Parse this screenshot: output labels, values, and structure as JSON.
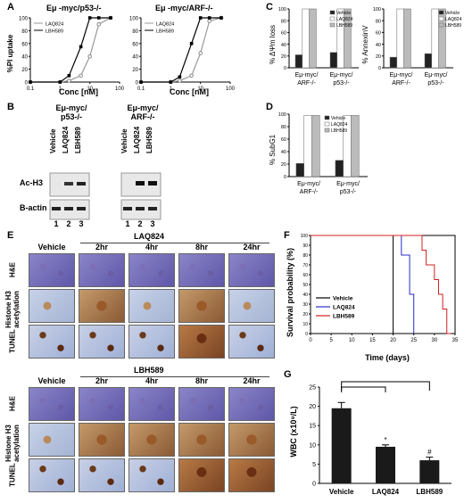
{
  "panel_labels": {
    "a": "A",
    "b": "B",
    "c": "C",
    "d": "D",
    "e": "E",
    "f": "F",
    "g": "G"
  },
  "panelA": {
    "left_title": "Eμ -myc/p53-/-",
    "right_title": "Eμ -myc/ARF-/-",
    "ylabel": "%PI uptake",
    "xlabel": "Conc [nM]",
    "yticks": [
      "0",
      "20",
      "40",
      "60",
      "80",
      "100"
    ],
    "xticks": [
      "0.1",
      "1",
      "10",
      "100"
    ],
    "legend": [
      "LAQ824",
      "LBH589"
    ]
  },
  "panelB": {
    "col1_title": "Eμ-myc/ p53-/-",
    "col2_title": "Eμ-myc/ ARF-/-",
    "lanes": [
      "Vehicle",
      "LAQ824",
      "LBH589"
    ],
    "row_labels": [
      "Ac-H3",
      "B-actin"
    ],
    "lane_numbers": [
      "1",
      "2",
      "3"
    ]
  },
  "panelC": {
    "ylabel_left": "% ΔΨm loss",
    "ylabel_right": "% AnnexinV",
    "yticks": [
      "0",
      "20",
      "40",
      "60",
      "80",
      "100"
    ],
    "groups": [
      "Eμ-myc/ ARF-/-",
      "Eμ-myc/ p53-/-"
    ],
    "legend": [
      "Vehicle",
      "LAQ824",
      "LBH589"
    ]
  },
  "panelD": {
    "ylabel": "% SubG1",
    "yticks": [
      "0",
      "20",
      "40",
      "60",
      "80",
      "100"
    ],
    "groups": [
      "Eμ-myc/ ARF-/-",
      "Eμ-myc/ p53-/-"
    ],
    "legend": [
      "Vehicle",
      "LAQ824",
      "LBH589"
    ]
  },
  "panelE": {
    "top_drug": "LAQ824",
    "bottom_drug": "LBH589",
    "timepoints": [
      "Vehicle",
      "2hr",
      "4hr",
      "8hr",
      "24hr"
    ],
    "row_labels": [
      "H&E",
      "Histone H3 acetylation",
      "TUNEL"
    ]
  },
  "panelF": {
    "ylabel": "Survival probability (%)",
    "xlabel": "Time (days)",
    "yticks": [
      "0",
      "10",
      "20",
      "30",
      "40",
      "50",
      "60",
      "70",
      "80",
      "90",
      "100"
    ],
    "xticks": [
      "0",
      "5",
      "10",
      "15",
      "20",
      "25",
      "30",
      "35"
    ],
    "legend": [
      "Vehicle",
      "LAQ824",
      "LBH589"
    ],
    "colors": {
      "vehicle": "#000000",
      "laq824": "#2b2bcc",
      "lbh589": "#d42020"
    }
  },
  "panelG": {
    "ylabel": "WBC (x10⁹/L)",
    "yticks": [
      "0",
      "5",
      "10",
      "15",
      "20",
      "25"
    ],
    "categories": [
      "Vehicle",
      "LAQ824",
      "LBH589"
    ],
    "annotations": [
      "*",
      "#"
    ]
  },
  "chart_data": [
    {
      "type": "line",
      "title": "Eμ -myc/p53-/-",
      "xlabel": "Conc [nM]",
      "ylabel": "%PI uptake",
      "xscale": "log",
      "xlim": [
        0.1,
        100
      ],
      "ylim": [
        0,
        100
      ],
      "x": [
        0.1,
        1,
        2,
        5,
        10,
        20,
        50
      ],
      "series": [
        {
          "name": "LAQ824",
          "values": [
            0,
            0,
            2,
            10,
            40,
            90,
            100
          ]
        },
        {
          "name": "LBH589",
          "values": [
            0,
            0,
            10,
            55,
            100,
            100,
            100
          ]
        }
      ]
    },
    {
      "type": "line",
      "title": "Eμ -myc/ARF-/-",
      "xlabel": "Conc [nM]",
      "ylabel": "%PI uptake",
      "xscale": "log",
      "xlim": [
        0.1,
        100
      ],
      "ylim": [
        0,
        100
      ],
      "x": [
        0.1,
        1,
        2,
        5,
        10,
        20,
        50
      ],
      "series": [
        {
          "name": "LAQ824",
          "values": [
            0,
            0,
            2,
            10,
            45,
            95,
            100
          ]
        },
        {
          "name": "LBH589",
          "values": [
            0,
            0,
            8,
            60,
            100,
            100,
            100
          ]
        }
      ]
    },
    {
      "type": "bar",
      "ylabel": "% ΔΨm loss",
      "categories": [
        "Eμ-myc/ ARF-/-",
        "Eμ-myc/ p53-/-"
      ],
      "ylim": [
        0,
        100
      ],
      "series": [
        {
          "name": "Vehicle",
          "values": [
            22,
            26
          ]
        },
        {
          "name": "LAQ824",
          "values": [
            100,
            100
          ]
        },
        {
          "name": "LBH589",
          "values": [
            100,
            100
          ]
        }
      ]
    },
    {
      "type": "bar",
      "ylabel": "% AnnexinV",
      "categories": [
        "Eμ-myc/ ARF-/-",
        "Eμ-myc/ p53-/-"
      ],
      "ylim": [
        0,
        100
      ],
      "series": [
        {
          "name": "Vehicle",
          "values": [
            18,
            24
          ]
        },
        {
          "name": "LAQ824",
          "values": [
            100,
            100
          ]
        },
        {
          "name": "LBH589",
          "values": [
            100,
            100
          ]
        }
      ]
    },
    {
      "type": "bar",
      "ylabel": "% SubG1",
      "categories": [
        "Eμ-myc/ ARF-/-",
        "Eμ-myc/ p53-/-"
      ],
      "ylim": [
        0,
        100
      ],
      "series": [
        {
          "name": "Vehicle",
          "values": [
            21,
            26
          ]
        },
        {
          "name": "LAQ824",
          "values": [
            98,
            98
          ]
        },
        {
          "name": "LBH589",
          "values": [
            98,
            98
          ]
        }
      ]
    },
    {
      "type": "line",
      "xlabel": "Time (days)",
      "ylabel": "Survival probability (%)",
      "xlim": [
        0,
        35
      ],
      "ylim": [
        0,
        100
      ],
      "series": [
        {
          "name": "Vehicle",
          "steps": [
            [
              0,
              100
            ],
            [
              20,
              100
            ],
            [
              20,
              0
            ]
          ]
        },
        {
          "name": "LAQ824",
          "steps": [
            [
              0,
              100
            ],
            [
              22,
              100
            ],
            [
              22,
              80
            ],
            [
              24,
              80
            ],
            [
              24,
              40
            ],
            [
              25,
              40
            ],
            [
              25,
              0
            ]
          ]
        },
        {
          "name": "LBH589",
          "steps": [
            [
              0,
              100
            ],
            [
              27,
              100
            ],
            [
              27,
              85
            ],
            [
              28,
              85
            ],
            [
              28,
              70
            ],
            [
              30,
              70
            ],
            [
              30,
              55
            ],
            [
              31,
              55
            ],
            [
              31,
              40
            ],
            [
              32,
              40
            ],
            [
              32,
              25
            ],
            [
              33,
              25
            ],
            [
              33,
              0
            ],
            [
              34,
              0
            ]
          ]
        }
      ]
    },
    {
      "type": "bar",
      "ylabel": "WBC (x10⁹/L)",
      "categories": [
        "Vehicle",
        "LAQ824",
        "LBH589"
      ],
      "values": [
        19.5,
        9.5,
        6
      ],
      "errors": [
        1.5,
        0.5,
        0.8
      ],
      "ylim": [
        0,
        25
      ]
    }
  ]
}
